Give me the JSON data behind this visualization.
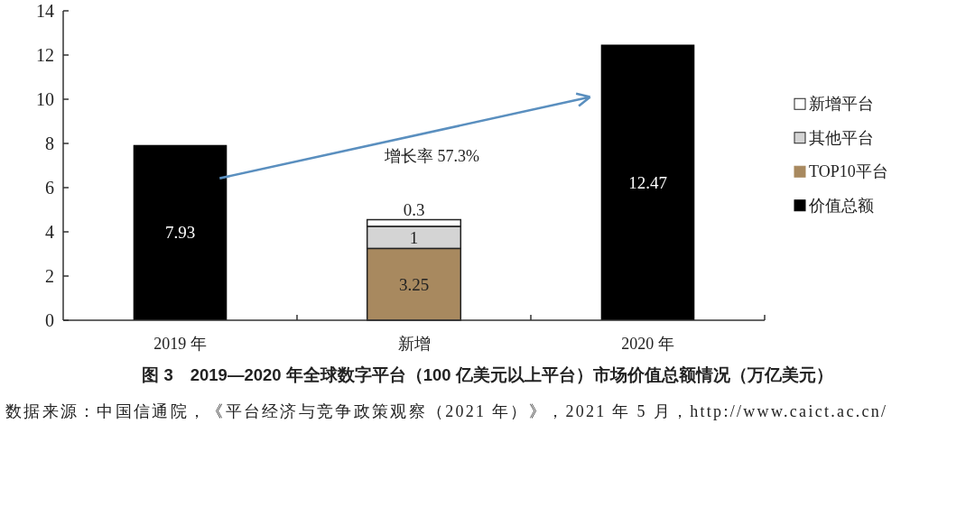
{
  "chart_data": {
    "type": "bar",
    "stacked": true,
    "title": "图 3　2019—2020 年全球数字平台（100 亿美元以上平台）市场价值总额情况（万亿美元）",
    "categories": [
      "2019 年",
      "新增",
      "2020 年"
    ],
    "series": [
      {
        "name": "价值总额",
        "color": "#000000",
        "values": [
          7.93,
          null,
          12.47
        ]
      },
      {
        "name": "TOP10平台",
        "color": "#a8895f",
        "values": [
          null,
          3.25,
          null
        ]
      },
      {
        "name": "其他平台",
        "color": "#d4d4d4",
        "values": [
          null,
          1,
          null
        ]
      },
      {
        "name": "新增平台",
        "color": "#ffffff",
        "values": [
          null,
          0.3,
          null
        ]
      }
    ],
    "ylim": [
      0,
      14
    ],
    "yticks": [
      0,
      2,
      4,
      6,
      8,
      10,
      12,
      14
    ],
    "data_labels": true,
    "legend": "right",
    "annotations": [
      "增长率 57.3%",
      "数据来源：中国信通院，《平台经济与竞争政策观察（2021 年）》，2021 年 5 月，http://www.caict.ac.cn/"
    ]
  }
}
